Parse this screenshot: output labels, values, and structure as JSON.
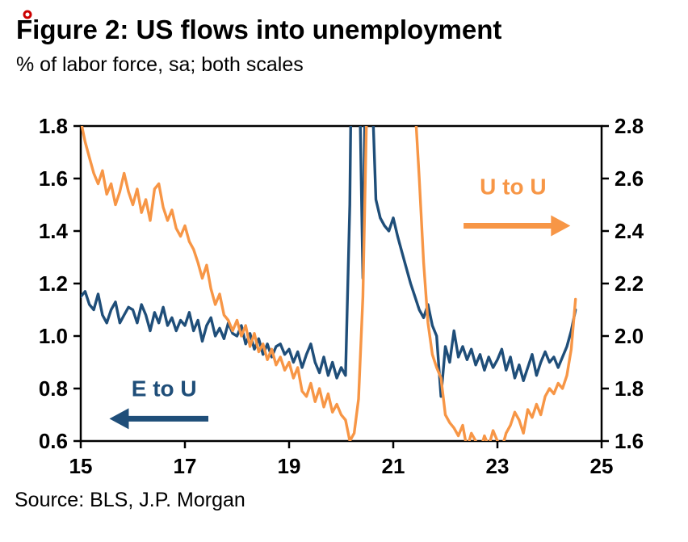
{
  "decorations": {
    "red_dot_color": "#cc0000"
  },
  "chart_data": {
    "type": "line",
    "title": "Figure 2: US flows into unemployment",
    "subtitle": "% of labor force, sa; both scales",
    "source": "Source: BLS, J.P. Morgan",
    "frame_color": "#000000",
    "grid": false,
    "x_range": [
      2015,
      2025
    ],
    "x_tick_values": [
      2015,
      2017,
      2019,
      2021,
      2023,
      2025
    ],
    "x_tick_labels": [
      "15",
      "17",
      "19",
      "21",
      "23",
      "25"
    ],
    "y_left_range": [
      0.6,
      1.8
    ],
    "y_left_ticks": [
      0.6,
      0.8,
      1.0,
      1.2,
      1.4,
      1.6,
      1.8
    ],
    "y_right_range": [
      1.6,
      2.8
    ],
    "y_right_ticks": [
      1.6,
      1.8,
      2.0,
      2.2,
      2.4,
      2.6,
      2.8
    ],
    "x_start": 2015.0,
    "x_step_years": 0.0833333,
    "series": [
      {
        "name": "E to U",
        "axis": "left",
        "color": "#1f4e79",
        "values": [
          1.15,
          1.17,
          1.12,
          1.1,
          1.16,
          1.08,
          1.05,
          1.1,
          1.13,
          1.05,
          1.08,
          1.11,
          1.1,
          1.05,
          1.12,
          1.08,
          1.02,
          1.09,
          1.05,
          1.11,
          1.04,
          1.07,
          1.02,
          1.06,
          1.04,
          1.09,
          1.02,
          1.06,
          0.98,
          1.04,
          1.07,
          1.0,
          1.03,
          0.99,
          1.05,
          1.01,
          1.0,
          1.04,
          0.97,
          1.01,
          0.95,
          0.99,
          0.93,
          0.97,
          0.92,
          0.96,
          0.97,
          0.93,
          0.95,
          0.9,
          0.94,
          0.88,
          0.93,
          0.97,
          0.9,
          0.86,
          0.92,
          0.85,
          0.9,
          0.84,
          0.88,
          0.85,
          1.5,
          3.0,
          2.2,
          1.22,
          2.6,
          2.0,
          1.52,
          1.45,
          1.42,
          1.4,
          1.45,
          1.38,
          1.32,
          1.26,
          1.2,
          1.15,
          1.1,
          1.07,
          1.12,
          1.04,
          1.0,
          0.77,
          0.96,
          0.9,
          1.02,
          0.92,
          0.96,
          0.91,
          0.95,
          0.89,
          0.93,
          0.87,
          0.92,
          0.88,
          0.91,
          0.95,
          0.87,
          0.92,
          0.84,
          0.89,
          0.83,
          0.88,
          0.93,
          0.85,
          0.9,
          0.94,
          0.9,
          0.92,
          0.88,
          0.92,
          0.96,
          1.02,
          1.1
        ]
      },
      {
        "name": "U to U",
        "axis": "right",
        "color": "#f79646",
        "values": [
          2.82,
          2.74,
          2.68,
          2.62,
          2.58,
          2.63,
          2.54,
          2.58,
          2.5,
          2.55,
          2.62,
          2.55,
          2.5,
          2.56,
          2.47,
          2.52,
          2.44,
          2.56,
          2.58,
          2.49,
          2.44,
          2.48,
          2.41,
          2.38,
          2.42,
          2.36,
          2.33,
          2.28,
          2.22,
          2.27,
          2.18,
          2.12,
          2.16,
          2.08,
          2.06,
          2.02,
          2.06,
          2.0,
          2.04,
          1.96,
          2.01,
          1.94,
          1.97,
          1.91,
          1.95,
          1.89,
          1.92,
          1.87,
          1.9,
          1.84,
          1.88,
          1.79,
          1.77,
          1.82,
          1.75,
          1.8,
          1.73,
          1.78,
          1.71,
          1.74,
          1.7,
          1.68,
          1.6,
          1.63,
          1.76,
          2.15,
          2.95,
          3.3,
          3.25,
          3.15,
          3.08,
          3.02,
          3.06,
          3.1,
          3.0,
          3.04,
          2.94,
          2.88,
          2.6,
          2.28,
          2.05,
          1.93,
          1.88,
          1.84,
          1.7,
          1.67,
          1.65,
          1.62,
          1.66,
          1.57,
          1.63,
          1.6,
          1.56,
          1.62,
          1.58,
          1.64,
          1.6,
          1.57,
          1.63,
          1.66,
          1.71,
          1.68,
          1.63,
          1.72,
          1.69,
          1.74,
          1.7,
          1.77,
          1.8,
          1.78,
          1.82,
          1.8,
          1.85,
          1.95,
          2.14
        ]
      }
    ],
    "annotations": [
      {
        "text": "U to U",
        "axis": "right",
        "color": "#f79646",
        "text_x": 2023.3,
        "text_y": 2.57,
        "arrow": {
          "x1": 2022.35,
          "y1": 2.42,
          "x2": 2024.4,
          "y2": 2.42
        }
      },
      {
        "text": "E to U",
        "axis": "left",
        "color": "#1f4e79",
        "text_x": 2016.6,
        "text_y": 0.8,
        "arrow": {
          "x1": 2017.45,
          "y1": 0.685,
          "x2": 2015.55,
          "y2": 0.685
        }
      }
    ]
  }
}
